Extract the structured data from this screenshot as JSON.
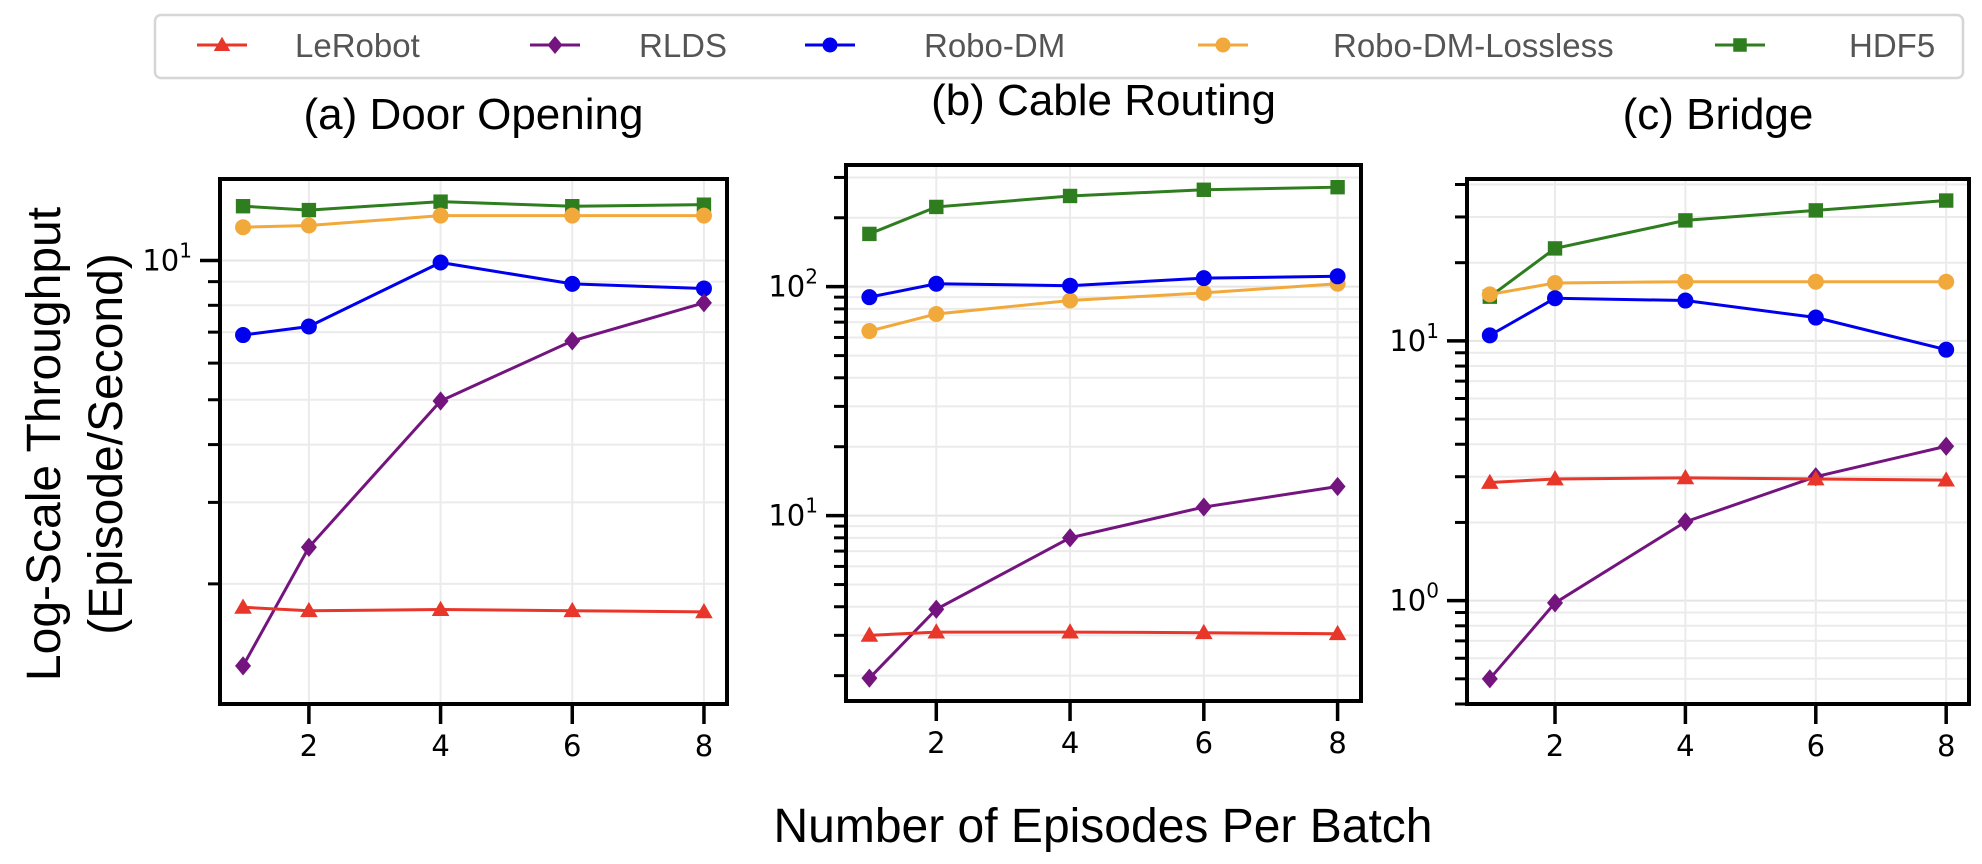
{
  "chart_data": {
    "type": "line",
    "ylabel_lines": [
      "Log-Scale Throughput",
      "(Episode/Second)"
    ],
    "xlabel": "Number of Episodes Per Batch",
    "legend": {
      "placement": "top-center",
      "entries": [
        {
          "name": "LeRobot",
          "color": "#e8372a",
          "marker": "triangle"
        },
        {
          "name": "RLDS",
          "color": "#74157f",
          "marker": "diamond"
        },
        {
          "name": "Robo-DM",
          "color": "#0000ee",
          "marker": "circle"
        },
        {
          "name": "Robo-DM-Lossless",
          "color": "#f2a93b",
          "marker": "circle"
        },
        {
          "name": "HDF5",
          "color": "#2e7d1f",
          "marker": "square"
        }
      ]
    },
    "panels": [
      {
        "title": "(a) Door Opening",
        "yscale": "log",
        "ylim": [
          1.1,
          15
        ],
        "yticks": [
          {
            "value": 10,
            "label_base": "10",
            "label_exp": "1"
          }
        ],
        "yminor": [
          2,
          3,
          4,
          5,
          6,
          7,
          8,
          9
        ],
        "xlim": [
          0.65,
          8.35
        ],
        "xticks": [
          2,
          4,
          6,
          8
        ],
        "x": [
          1,
          2,
          4,
          6,
          8
        ],
        "series": [
          {
            "name": "LeRobot",
            "values": [
              1.78,
              1.75,
              1.76,
              1.75,
              1.74
            ]
          },
          {
            "name": "RLDS",
            "values": [
              1.33,
              2.4,
              4.97,
              6.7,
              8.1
            ]
          },
          {
            "name": "Robo-DM",
            "values": [
              6.9,
              7.2,
              9.9,
              8.9,
              8.7
            ]
          },
          {
            "name": "Robo-DM-Lossless",
            "values": [
              11.8,
              11.9,
              12.5,
              12.5,
              12.5
            ]
          },
          {
            "name": "HDF5",
            "values": [
              13.1,
              12.85,
              13.4,
              13.1,
              13.2
            ]
          }
        ]
      },
      {
        "title": "(b) Cable Routing",
        "yscale": "log",
        "ylim": [
          1.55,
          340
        ],
        "yticks": [
          {
            "value": 10,
            "label_base": "10",
            "label_exp": "1"
          },
          {
            "value": 100,
            "label_base": "10",
            "label_exp": "2"
          }
        ],
        "yminor": [
          2,
          3,
          4,
          5,
          6,
          7,
          8,
          9,
          20,
          30,
          40,
          50,
          60,
          70,
          80,
          90,
          200,
          300
        ],
        "xlim": [
          0.65,
          8.35
        ],
        "xticks": [
          2,
          4,
          6,
          8
        ],
        "x": [
          1,
          2,
          4,
          6,
          8
        ],
        "series": [
          {
            "name": "LeRobot",
            "values": [
              3.0,
              3.1,
              3.1,
              3.08,
              3.05
            ]
          },
          {
            "name": "RLDS",
            "values": [
              1.95,
              3.9,
              8.0,
              10.9,
              13.4
            ]
          },
          {
            "name": "Robo-DM",
            "values": [
              90,
              103,
              101,
              109,
              111
            ]
          },
          {
            "name": "Robo-DM-Lossless",
            "values": [
              64,
              76,
              87,
              94,
              103
            ]
          },
          {
            "name": "HDF5",
            "values": [
              170,
              223,
              249,
              265,
              272
            ]
          }
        ]
      },
      {
        "title": "(c) Bridge",
        "yscale": "log",
        "ylim": [
          0.4,
          42
        ],
        "yticks": [
          {
            "value": 1,
            "label_base": "10",
            "label_exp": "0"
          },
          {
            "value": 10,
            "label_base": "10",
            "label_exp": "1"
          }
        ],
        "yminor": [
          0.4,
          0.5,
          0.6,
          0.7,
          0.8,
          0.9,
          2,
          3,
          4,
          5,
          6,
          7,
          8,
          9,
          20,
          30,
          40
        ],
        "xlim": [
          0.65,
          8.35
        ],
        "xticks": [
          2,
          4,
          6,
          8
        ],
        "x": [
          1,
          2,
          4,
          6,
          8
        ],
        "series": [
          {
            "name": "LeRobot",
            "values": [
              2.85,
              2.94,
              2.97,
              2.94,
              2.91
            ]
          },
          {
            "name": "RLDS",
            "values": [
              0.5,
              0.98,
              2.01,
              3.0,
              3.93
            ]
          },
          {
            "name": "Robo-DM",
            "values": [
              10.5,
              14.6,
              14.3,
              12.3,
              9.25
            ]
          },
          {
            "name": "Robo-DM-Lossless",
            "values": [
              15.1,
              16.7,
              16.9,
              16.9,
              16.9
            ]
          },
          {
            "name": "HDF5",
            "values": [
              14.8,
              22.7,
              29.1,
              31.8,
              34.7
            ]
          }
        ]
      }
    ]
  }
}
